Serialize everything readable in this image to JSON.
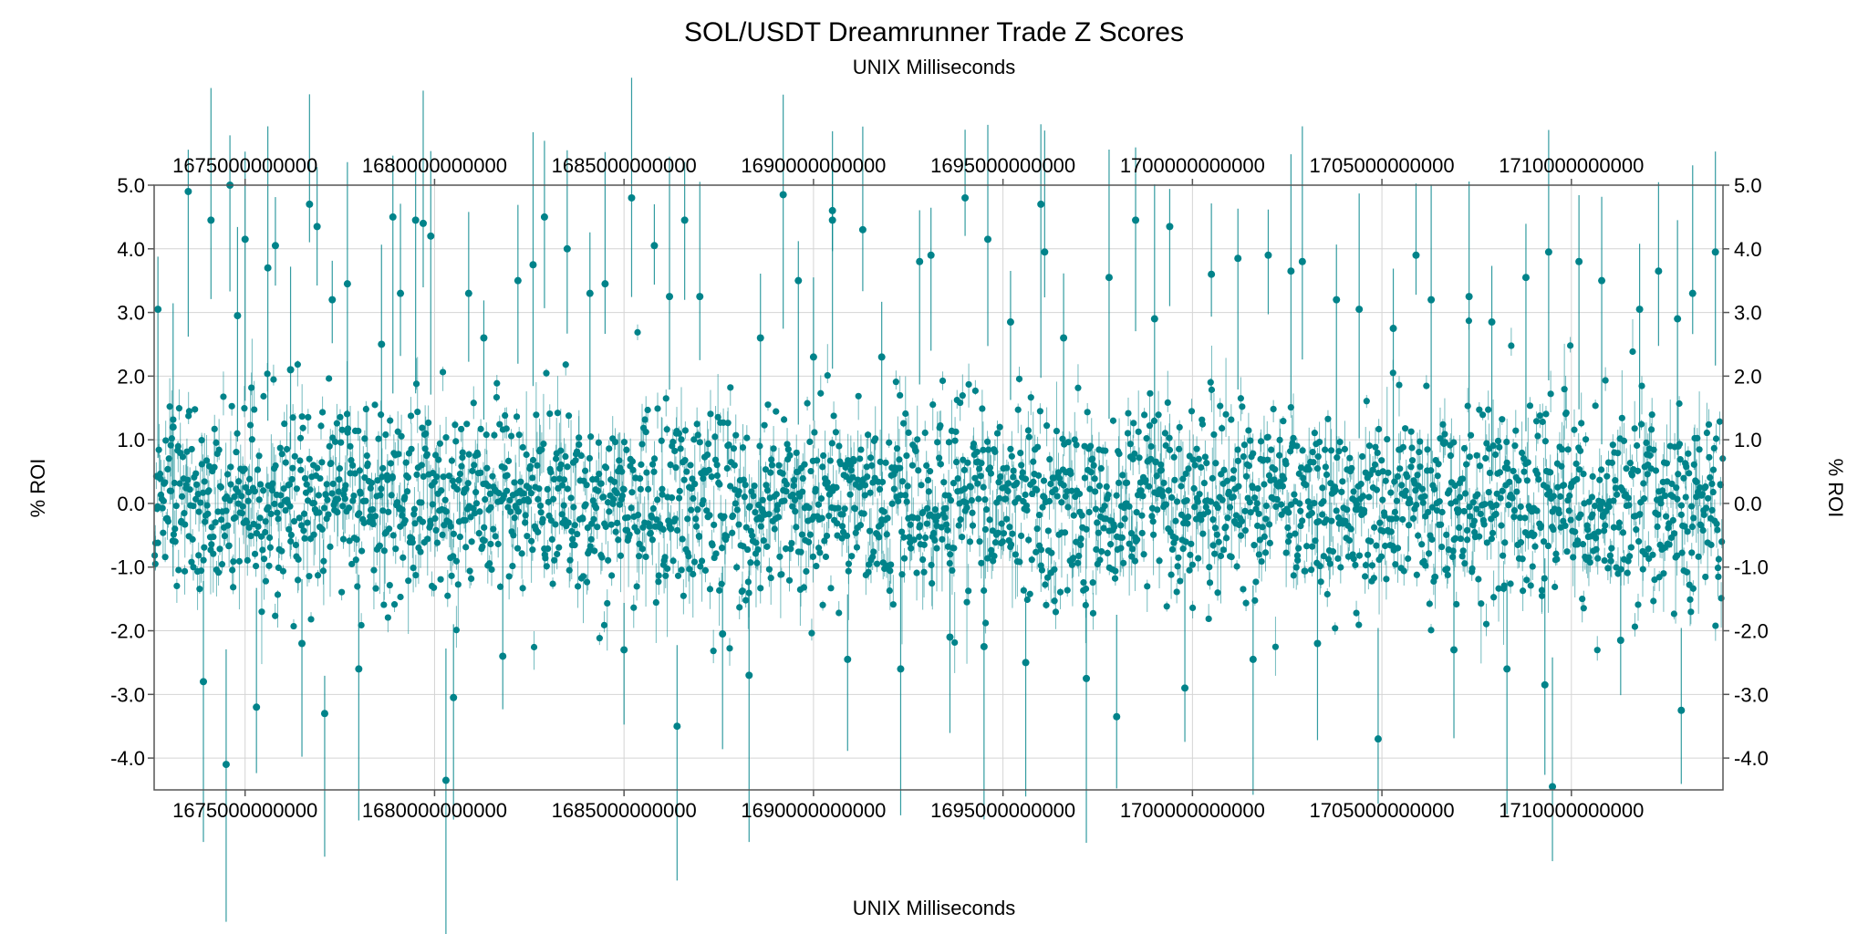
{
  "chart_data": {
    "type": "scatter",
    "title": "SOL/USDT Dreamrunner Trade Z Scores",
    "xlabel_top": "UNIX Milliseconds",
    "xlabel": "UNIX Milliseconds",
    "ylabel": "% ROI",
    "ylabel_right": "% ROI",
    "xlim": [
      1672600000000,
      1714000000000
    ],
    "ylim": [
      -4.5,
      5.0
    ],
    "x_ticks": [
      1675000000000,
      1680000000000,
      1685000000000,
      1690000000000,
      1695000000000,
      1700000000000,
      1705000000000,
      1710000000000
    ],
    "x_tick_labels": [
      "1675000000000",
      "1680000000000",
      "1685000000000",
      "1690000000000",
      "1695000000000",
      "1700000000000",
      "1705000000000",
      "1710000000000"
    ],
    "y_ticks": [
      -4.0,
      -3.0,
      -2.0,
      -1.0,
      0.0,
      1.0,
      2.0,
      3.0,
      4.0,
      5.0
    ],
    "y_tick_labels": [
      "-4.0",
      "-3.0",
      "-2.0",
      "-1.0",
      "0.0",
      "1.0",
      "2.0",
      "3.0",
      "4.0",
      "5.0"
    ],
    "grid": true,
    "color": "#00838a",
    "series": [
      {
        "marker": "dot-with-vertical-spread",
        "points": [
          {
            "x": 1672700000000,
            "y": 3.05
          },
          {
            "x": 1673100000000,
            "y": 1.2
          },
          {
            "x": 1673500000000,
            "y": 4.9
          },
          {
            "x": 1673900000000,
            "y": -2.8
          },
          {
            "x": 1674100000000,
            "y": 4.45
          },
          {
            "x": 1674500000000,
            "y": -4.1
          },
          {
            "x": 1674600000000,
            "y": 5.0
          },
          {
            "x": 1674800000000,
            "y": 2.95
          },
          {
            "x": 1675000000000,
            "y": 4.15
          },
          {
            "x": 1675300000000,
            "y": -3.2
          },
          {
            "x": 1675600000000,
            "y": 3.7
          },
          {
            "x": 1675800000000,
            "y": 4.05
          },
          {
            "x": 1676200000000,
            "y": 2.1
          },
          {
            "x": 1676500000000,
            "y": -2.2
          },
          {
            "x": 1676700000000,
            "y": 4.7
          },
          {
            "x": 1676900000000,
            "y": 4.35
          },
          {
            "x": 1677100000000,
            "y": -3.3
          },
          {
            "x": 1677300000000,
            "y": 3.2
          },
          {
            "x": 1677700000000,
            "y": 3.45
          },
          {
            "x": 1678000000000,
            "y": -2.6
          },
          {
            "x": 1678600000000,
            "y": 2.5
          },
          {
            "x": 1678900000000,
            "y": 4.5
          },
          {
            "x": 1679100000000,
            "y": 3.3
          },
          {
            "x": 1679500000000,
            "y": 4.45
          },
          {
            "x": 1679700000000,
            "y": 4.4
          },
          {
            "x": 1679900000000,
            "y": 4.2
          },
          {
            "x": 1680300000000,
            "y": -4.35
          },
          {
            "x": 1680500000000,
            "y": -3.05
          },
          {
            "x": 1680900000000,
            "y": 3.3
          },
          {
            "x": 1681300000000,
            "y": 2.6
          },
          {
            "x": 1681800000000,
            "y": -2.4
          },
          {
            "x": 1682200000000,
            "y": 3.5
          },
          {
            "x": 1682600000000,
            "y": 3.75
          },
          {
            "x": 1682900000000,
            "y": 4.5
          },
          {
            "x": 1683500000000,
            "y": 4.0
          },
          {
            "x": 1684100000000,
            "y": 3.3
          },
          {
            "x": 1684500000000,
            "y": 3.45
          },
          {
            "x": 1685000000000,
            "y": -2.3
          },
          {
            "x": 1685200000000,
            "y": 4.8
          },
          {
            "x": 1685800000000,
            "y": 4.05
          },
          {
            "x": 1686200000000,
            "y": 3.25
          },
          {
            "x": 1686400000000,
            "y": -3.5
          },
          {
            "x": 1686600000000,
            "y": 4.45
          },
          {
            "x": 1687000000000,
            "y": 3.25
          },
          {
            "x": 1687600000000,
            "y": -2.05
          },
          {
            "x": 1688300000000,
            "y": -2.7
          },
          {
            "x": 1688600000000,
            "y": 2.6
          },
          {
            "x": 1689200000000,
            "y": 4.85
          },
          {
            "x": 1689600000000,
            "y": 3.5
          },
          {
            "x": 1690000000000,
            "y": 2.3
          },
          {
            "x": 1690500000000,
            "y": 4.45
          },
          {
            "x": 1690500000000,
            "y": 4.6
          },
          {
            "x": 1690900000000,
            "y": -2.45
          },
          {
            "x": 1691300000000,
            "y": 4.3
          },
          {
            "x": 1691800000000,
            "y": 2.3
          },
          {
            "x": 1692300000000,
            "y": -2.6
          },
          {
            "x": 1692800000000,
            "y": 3.8
          },
          {
            "x": 1693100000000,
            "y": 3.9
          },
          {
            "x": 1693600000000,
            "y": -2.1
          },
          {
            "x": 1694000000000,
            "y": 4.8
          },
          {
            "x": 1694500000000,
            "y": -2.25
          },
          {
            "x": 1694600000000,
            "y": 4.15
          },
          {
            "x": 1695200000000,
            "y": 2.85
          },
          {
            "x": 1695600000000,
            "y": -2.5
          },
          {
            "x": 1696000000000,
            "y": 4.7
          },
          {
            "x": 1696100000000,
            "y": 3.95
          },
          {
            "x": 1696600000000,
            "y": 2.6
          },
          {
            "x": 1697200000000,
            "y": -2.75
          },
          {
            "x": 1697800000000,
            "y": 3.55
          },
          {
            "x": 1698000000000,
            "y": -3.35
          },
          {
            "x": 1698500000000,
            "y": 4.45
          },
          {
            "x": 1699000000000,
            "y": 2.9
          },
          {
            "x": 1699400000000,
            "y": 4.35
          },
          {
            "x": 1699800000000,
            "y": -2.9
          },
          {
            "x": 1700500000000,
            "y": 3.6
          },
          {
            "x": 1701200000000,
            "y": 3.85
          },
          {
            "x": 1701600000000,
            "y": -2.45
          },
          {
            "x": 1702000000000,
            "y": 3.9
          },
          {
            "x": 1702600000000,
            "y": 3.65
          },
          {
            "x": 1702900000000,
            "y": 3.8
          },
          {
            "x": 1703300000000,
            "y": -2.2
          },
          {
            "x": 1703800000000,
            "y": 3.2
          },
          {
            "x": 1704400000000,
            "y": 3.05
          },
          {
            "x": 1704900000000,
            "y": -3.7
          },
          {
            "x": 1705300000000,
            "y": 2.75
          },
          {
            "x": 1705900000000,
            "y": 3.9
          },
          {
            "x": 1706300000000,
            "y": 3.2
          },
          {
            "x": 1706900000000,
            "y": -2.3
          },
          {
            "x": 1707300000000,
            "y": 3.25
          },
          {
            "x": 1707900000000,
            "y": 2.85
          },
          {
            "x": 1708300000000,
            "y": -2.6
          },
          {
            "x": 1708800000000,
            "y": 3.55
          },
          {
            "x": 1709300000000,
            "y": -2.85
          },
          {
            "x": 1709400000000,
            "y": 3.95
          },
          {
            "x": 1709500000000,
            "y": -4.45
          },
          {
            "x": 1710200000000,
            "y": 3.8
          },
          {
            "x": 1710800000000,
            "y": 3.5
          },
          {
            "x": 1711300000000,
            "y": -2.15
          },
          {
            "x": 1711800000000,
            "y": 3.05
          },
          {
            "x": 1712300000000,
            "y": 3.65
          },
          {
            "x": 1712800000000,
            "y": 2.9
          },
          {
            "x": 1712900000000,
            "y": -3.25
          },
          {
            "x": 1713200000000,
            "y": 3.3
          },
          {
            "x": 1713800000000,
            "y": 3.95
          }
        ]
      }
    ]
  }
}
